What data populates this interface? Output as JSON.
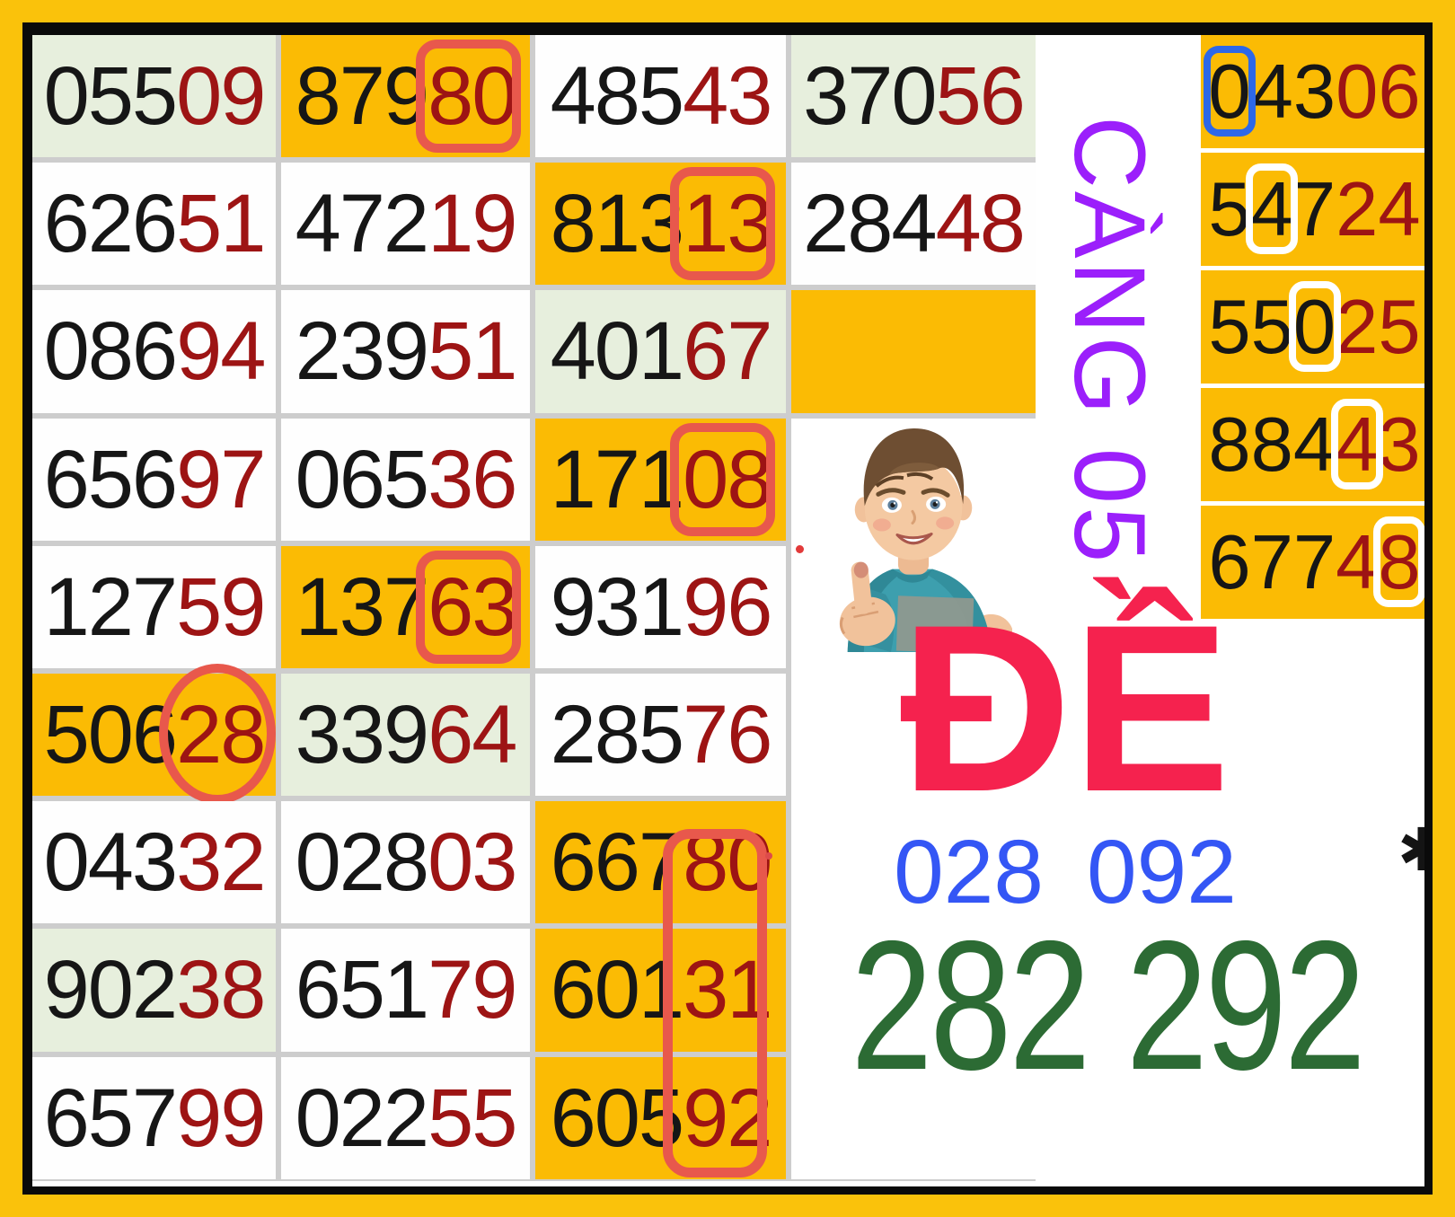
{
  "palette": {
    "outer_border": "#FAC20B",
    "inner_border": "#0A0A0A",
    "cell_orange": "#FBBB04",
    "cell_green": "#E7EFDD",
    "digit_black": "#161616",
    "digit_maroon": "#9D1414",
    "annotation_red": "#E8584C",
    "annotation_blue": "#2D68E8",
    "annotation_white": "#FFFFFF",
    "cang_purple": "#9B1FFB",
    "de_pink": "#F5224E",
    "pair_blue": "#3456F5",
    "pair_green": "#2C6B34"
  },
  "main_grid": {
    "cells": [
      {
        "row": 1,
        "col": 1,
        "black": "055",
        "red": "09",
        "bg": "green",
        "mark": null
      },
      {
        "row": 1,
        "col": 2,
        "black": "879",
        "red": "80",
        "bg": "orange",
        "mark": "red-box"
      },
      {
        "row": 1,
        "col": 3,
        "black": "485",
        "red": "43",
        "bg": "white",
        "mark": null
      },
      {
        "row": 1,
        "col": 4,
        "black": "370",
        "red": "56",
        "bg": "green",
        "mark": null
      },
      {
        "row": 2,
        "col": 1,
        "black": "626",
        "red": "51",
        "bg": "white",
        "mark": null
      },
      {
        "row": 2,
        "col": 2,
        "black": "472",
        "red": "19",
        "bg": "white",
        "mark": null
      },
      {
        "row": 2,
        "col": 3,
        "black": "813",
        "red": "13",
        "bg": "orange",
        "mark": "red-box"
      },
      {
        "row": 2,
        "col": 4,
        "black": "284",
        "red": "48",
        "bg": "white",
        "mark": null
      },
      {
        "row": 3,
        "col": 1,
        "black": "086",
        "red": "94",
        "bg": "white",
        "mark": null
      },
      {
        "row": 3,
        "col": 2,
        "black": "239",
        "red": "51",
        "bg": "white",
        "mark": null
      },
      {
        "row": 3,
        "col": 3,
        "black": "401",
        "red": "67",
        "bg": "green",
        "mark": null
      },
      {
        "row": 3,
        "col": 4,
        "black": "",
        "red": "",
        "bg": "orange",
        "mark": null
      },
      {
        "row": 4,
        "col": 1,
        "black": "656",
        "red": "97",
        "bg": "white",
        "mark": null
      },
      {
        "row": 4,
        "col": 2,
        "black": "065",
        "red": "36",
        "bg": "white",
        "mark": null
      },
      {
        "row": 4,
        "col": 3,
        "black": "171",
        "red": "08",
        "bg": "orange",
        "mark": "red-box"
      },
      {
        "row": 5,
        "col": 1,
        "black": "127",
        "red": "59",
        "bg": "white",
        "mark": null
      },
      {
        "row": 5,
        "col": 2,
        "black": "137",
        "red": "63",
        "bg": "orange",
        "mark": "red-box"
      },
      {
        "row": 5,
        "col": 3,
        "black": "931",
        "red": "96",
        "bg": "white",
        "mark": null
      },
      {
        "row": 6,
        "col": 1,
        "black": "506",
        "red": "28",
        "bg": "orange",
        "mark": "red-circle"
      },
      {
        "row": 6,
        "col": 2,
        "black": "339",
        "red": "64",
        "bg": "green",
        "mark": null
      },
      {
        "row": 6,
        "col": 3,
        "black": "285",
        "red": "76",
        "bg": "white",
        "mark": null
      },
      {
        "row": 7,
        "col": 1,
        "black": "043",
        "red": "32",
        "bg": "white",
        "mark": null
      },
      {
        "row": 7,
        "col": 2,
        "black": "028",
        "red": "03",
        "bg": "white",
        "mark": null
      },
      {
        "row": 7,
        "col": 3,
        "black": "667",
        "red": "80",
        "bg": "orange",
        "mark": null
      },
      {
        "row": 8,
        "col": 1,
        "black": "902",
        "red": "38",
        "bg": "green",
        "mark": null
      },
      {
        "row": 8,
        "col": 2,
        "black": "651",
        "red": "79",
        "bg": "white",
        "mark": null
      },
      {
        "row": 8,
        "col": 3,
        "black": "601",
        "red": "31",
        "bg": "orange",
        "mark": null
      },
      {
        "row": 9,
        "col": 1,
        "black": "657",
        "red": "99",
        "bg": "white",
        "mark": null
      },
      {
        "row": 9,
        "col": 2,
        "black": "022",
        "red": "55",
        "bg": "white",
        "mark": null
      },
      {
        "row": 9,
        "col": 3,
        "black": "605",
        "red": "92",
        "bg": "orange",
        "mark": null
      }
    ],
    "tall_red_box": {
      "column": 3,
      "row_start": 7,
      "row_end": 9,
      "covers": [
        "80",
        "31",
        "92"
      ]
    }
  },
  "side_column": {
    "cells": [
      {
        "black": "043",
        "red": "06",
        "boxed_digit_index": 0,
        "box_color": "blue"
      },
      {
        "black": "547",
        "red": "24",
        "boxed_digit_index": 1,
        "box_color": "white"
      },
      {
        "black": "550",
        "red": "25",
        "boxed_digit_index": 2,
        "box_color": "white"
      },
      {
        "black": "884",
        "red": "43",
        "boxed_digit_index": 3,
        "box_color": "white"
      },
      {
        "black": "677",
        "red": "48",
        "boxed_digit_index": 4,
        "box_color": "white"
      }
    ]
  },
  "cang_label": {
    "text": "CÀNG 05"
  },
  "de_label": {
    "text": "ĐỀ"
  },
  "blue_numbers": {
    "values": [
      "028",
      "092"
    ]
  },
  "green_numbers": {
    "text": "282 292"
  },
  "partial_star": {
    "glyph": "✱"
  },
  "boy_image": {
    "description": "boy giving thumbs up in teal t-shirt"
  }
}
